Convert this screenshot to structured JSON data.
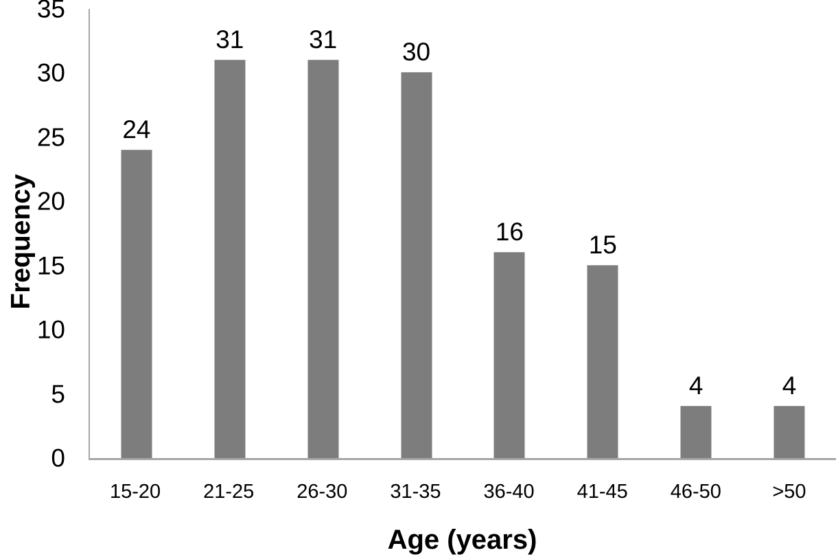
{
  "chart_data": {
    "type": "bar",
    "title": "",
    "xlabel": "Age (years)",
    "ylabel": "Frequency",
    "categories": [
      "15-20",
      "21-25",
      "26-30",
      "31-35",
      "36-40",
      "41-45",
      "46-50",
      ">50"
    ],
    "values": [
      24,
      31,
      31,
      30,
      16,
      15,
      4,
      4
    ],
    "ylim": [
      0,
      35
    ],
    "yticks": [
      0,
      5,
      10,
      15,
      20,
      25,
      30,
      35
    ],
    "grid": "off",
    "legend": "none",
    "data_labels": "above-bars",
    "bar_color": "#7d7d7d",
    "axis_line_color": "#a6a6a6",
    "text_color": "#000000"
  }
}
